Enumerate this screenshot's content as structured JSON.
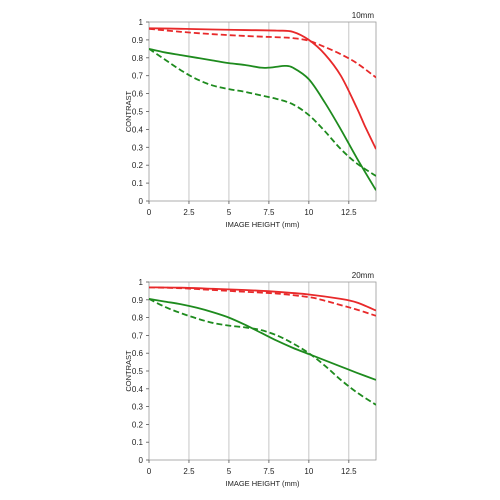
{
  "chart_data": [
    {
      "type": "line",
      "title": "10mm",
      "xlabel": "IMAGE HEIGHT (mm)",
      "ylabel": "CONTRAST",
      "xlim": [
        0,
        14.2
      ],
      "ylim": [
        0,
        1
      ],
      "x_ticks": [
        0,
        2.5,
        5,
        7.5,
        10,
        12.5
      ],
      "x_tick_labels": [
        "0",
        "2.5",
        "5",
        "7.5",
        "10",
        "12.5"
      ],
      "y_ticks": [
        0,
        0.1,
        0.2,
        0.3,
        0.4,
        0.5,
        0.6,
        0.7,
        0.8,
        0.9,
        1
      ],
      "y_tick_labels": [
        "0",
        "0.1",
        "0.2",
        "0.3",
        "0.4",
        "0.5",
        "0.6",
        "0.7",
        "0.8",
        "0.9",
        "1"
      ],
      "grid": "vertical",
      "series": [
        {
          "color": "#e8292a",
          "style": "solid",
          "x": [
            0,
            2,
            4,
            6,
            8,
            9,
            10,
            11,
            12,
            13,
            13.5,
            14.2
          ],
          "y": [
            0.965,
            0.962,
            0.958,
            0.955,
            0.952,
            0.945,
            0.9,
            0.82,
            0.7,
            0.52,
            0.42,
            0.29
          ]
        },
        {
          "color": "#e8292a",
          "style": "dashed",
          "x": [
            0,
            2,
            4,
            6,
            8,
            9,
            10,
            11,
            12,
            13,
            14.2
          ],
          "y": [
            0.962,
            0.945,
            0.932,
            0.922,
            0.915,
            0.91,
            0.895,
            0.86,
            0.82,
            0.77,
            0.69
          ]
        },
        {
          "color": "#1e8b1e",
          "style": "solid",
          "x": [
            0,
            1,
            2,
            3,
            4,
            5,
            6,
            7,
            7.5,
            8,
            8.5,
            9,
            10,
            11,
            12,
            13,
            14.2
          ],
          "y": [
            0.85,
            0.83,
            0.815,
            0.8,
            0.785,
            0.77,
            0.76,
            0.745,
            0.745,
            0.75,
            0.755,
            0.745,
            0.68,
            0.55,
            0.4,
            0.24,
            0.06
          ]
        },
        {
          "color": "#1e8b1e",
          "style": "dashed",
          "x": [
            0,
            1,
            2,
            3,
            4,
            5,
            6,
            7,
            8,
            9,
            10,
            11,
            12,
            13,
            14.2
          ],
          "y": [
            0.85,
            0.79,
            0.73,
            0.68,
            0.645,
            0.625,
            0.61,
            0.59,
            0.57,
            0.54,
            0.48,
            0.39,
            0.29,
            0.21,
            0.14
          ]
        }
      ]
    },
    {
      "type": "line",
      "title": "20mm",
      "xlabel": "IMAGE HEIGHT (mm)",
      "ylabel": "CONTRAST",
      "xlim": [
        0,
        14.2
      ],
      "ylim": [
        0,
        1
      ],
      "x_ticks": [
        0,
        2.5,
        5,
        7.5,
        10,
        12.5
      ],
      "x_tick_labels": [
        "0",
        "2.5",
        "5",
        "7.5",
        "10",
        "12.5"
      ],
      "y_ticks": [
        0,
        0.1,
        0.2,
        0.3,
        0.4,
        0.5,
        0.6,
        0.7,
        0.8,
        0.9,
        1
      ],
      "y_tick_labels": [
        "0",
        "0.1",
        "0.2",
        "0.3",
        "0.4",
        "0.5",
        "0.6",
        "0.7",
        "0.8",
        "0.9",
        "1"
      ],
      "grid": "vertical",
      "series": [
        {
          "color": "#e8292a",
          "style": "solid",
          "x": [
            0,
            2,
            4,
            6,
            8,
            10,
            12,
            13,
            14.2
          ],
          "y": [
            0.97,
            0.968,
            0.962,
            0.955,
            0.945,
            0.93,
            0.905,
            0.885,
            0.84
          ]
        },
        {
          "color": "#e8292a",
          "style": "dashed",
          "x": [
            0,
            2,
            4,
            6,
            8,
            10,
            11,
            12,
            13,
            14.2
          ],
          "y": [
            0.97,
            0.965,
            0.955,
            0.945,
            0.935,
            0.915,
            0.895,
            0.87,
            0.845,
            0.81
          ]
        },
        {
          "color": "#1e8b1e",
          "style": "solid",
          "x": [
            0,
            1,
            2,
            3,
            4,
            5,
            6,
            7,
            8,
            9,
            10,
            11,
            12,
            13,
            14.2
          ],
          "y": [
            0.905,
            0.89,
            0.875,
            0.855,
            0.83,
            0.8,
            0.76,
            0.715,
            0.67,
            0.63,
            0.595,
            0.56,
            0.525,
            0.49,
            0.45
          ]
        },
        {
          "color": "#1e8b1e",
          "style": "dashed",
          "x": [
            0,
            1,
            2,
            3,
            4,
            5,
            6,
            7,
            8,
            9,
            10,
            11,
            12,
            13,
            14.2
          ],
          "y": [
            0.905,
            0.86,
            0.825,
            0.795,
            0.77,
            0.755,
            0.745,
            0.73,
            0.7,
            0.655,
            0.6,
            0.53,
            0.45,
            0.38,
            0.31
          ]
        }
      ]
    }
  ]
}
